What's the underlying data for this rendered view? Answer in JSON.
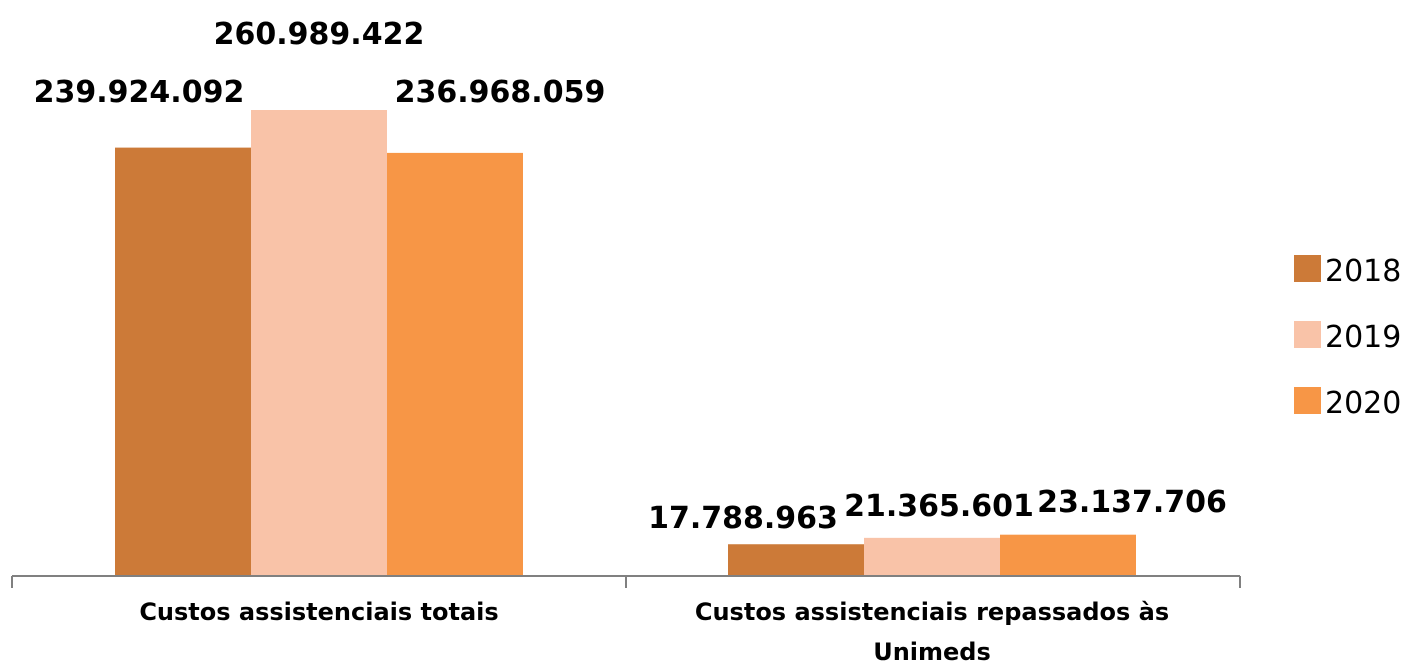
{
  "chart_data": {
    "type": "bar",
    "title": "",
    "xlabel": "",
    "ylabel": "",
    "categories": [
      "Custos assistenciais totais",
      "Custos assistenciais repassados às Unimeds"
    ],
    "category_lines": [
      [
        "Custos assistenciais totais"
      ],
      [
        "Custos assistenciais repassados às",
        "Unimeds"
      ]
    ],
    "series": [
      {
        "name": "2018",
        "color": "#CC7A38",
        "values": [
          239924092,
          17788963
        ],
        "labels": [
          "239.924.092",
          "17.788.963"
        ]
      },
      {
        "name": "2019",
        "color": "#F9C3A8",
        "values": [
          260989422,
          21365601
        ],
        "labels": [
          "260.989.422",
          "21.365.601"
        ]
      },
      {
        "name": "2020",
        "color": "#F79646",
        "values": [
          236968059,
          23137706
        ],
        "labels": [
          "236.968.059",
          "23.137.706"
        ]
      }
    ],
    "ylim": [
      0,
      300000000
    ],
    "grid": false,
    "legend_position": "right",
    "data_labels": true
  }
}
